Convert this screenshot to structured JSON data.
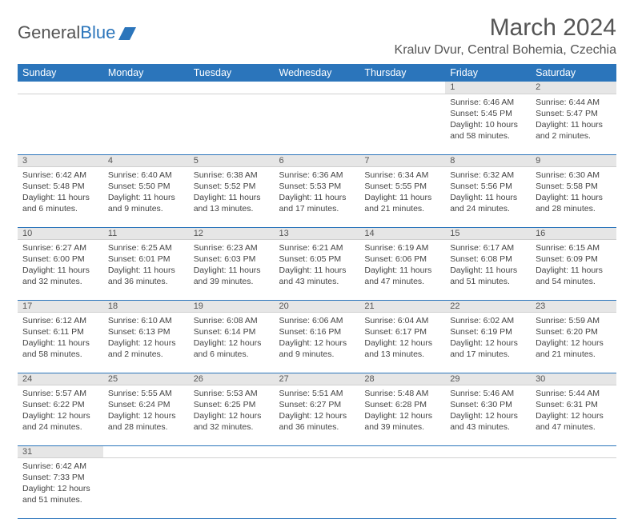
{
  "brand": {
    "part1": "General",
    "part2": "Blue"
  },
  "title": "March 2024",
  "location": "Kraluv Dvur, Central Bohemia, Czechia",
  "colors": {
    "header_bg": "#2b75bb",
    "header_text": "#ffffff",
    "daynum_bg": "#e6e6e6",
    "row_border": "#2b75bb",
    "text": "#444444"
  },
  "day_headers": [
    "Sunday",
    "Monday",
    "Tuesday",
    "Wednesday",
    "Thursday",
    "Friday",
    "Saturday"
  ],
  "weeks": [
    [
      null,
      null,
      null,
      null,
      null,
      {
        "n": "1",
        "sr": "Sunrise: 6:46 AM",
        "ss": "Sunset: 5:45 PM",
        "dl": "Daylight: 10 hours and 58 minutes."
      },
      {
        "n": "2",
        "sr": "Sunrise: 6:44 AM",
        "ss": "Sunset: 5:47 PM",
        "dl": "Daylight: 11 hours and 2 minutes."
      }
    ],
    [
      {
        "n": "3",
        "sr": "Sunrise: 6:42 AM",
        "ss": "Sunset: 5:48 PM",
        "dl": "Daylight: 11 hours and 6 minutes."
      },
      {
        "n": "4",
        "sr": "Sunrise: 6:40 AM",
        "ss": "Sunset: 5:50 PM",
        "dl": "Daylight: 11 hours and 9 minutes."
      },
      {
        "n": "5",
        "sr": "Sunrise: 6:38 AM",
        "ss": "Sunset: 5:52 PM",
        "dl": "Daylight: 11 hours and 13 minutes."
      },
      {
        "n": "6",
        "sr": "Sunrise: 6:36 AM",
        "ss": "Sunset: 5:53 PM",
        "dl": "Daylight: 11 hours and 17 minutes."
      },
      {
        "n": "7",
        "sr": "Sunrise: 6:34 AM",
        "ss": "Sunset: 5:55 PM",
        "dl": "Daylight: 11 hours and 21 minutes."
      },
      {
        "n": "8",
        "sr": "Sunrise: 6:32 AM",
        "ss": "Sunset: 5:56 PM",
        "dl": "Daylight: 11 hours and 24 minutes."
      },
      {
        "n": "9",
        "sr": "Sunrise: 6:30 AM",
        "ss": "Sunset: 5:58 PM",
        "dl": "Daylight: 11 hours and 28 minutes."
      }
    ],
    [
      {
        "n": "10",
        "sr": "Sunrise: 6:27 AM",
        "ss": "Sunset: 6:00 PM",
        "dl": "Daylight: 11 hours and 32 minutes."
      },
      {
        "n": "11",
        "sr": "Sunrise: 6:25 AM",
        "ss": "Sunset: 6:01 PM",
        "dl": "Daylight: 11 hours and 36 minutes."
      },
      {
        "n": "12",
        "sr": "Sunrise: 6:23 AM",
        "ss": "Sunset: 6:03 PM",
        "dl": "Daylight: 11 hours and 39 minutes."
      },
      {
        "n": "13",
        "sr": "Sunrise: 6:21 AM",
        "ss": "Sunset: 6:05 PM",
        "dl": "Daylight: 11 hours and 43 minutes."
      },
      {
        "n": "14",
        "sr": "Sunrise: 6:19 AM",
        "ss": "Sunset: 6:06 PM",
        "dl": "Daylight: 11 hours and 47 minutes."
      },
      {
        "n": "15",
        "sr": "Sunrise: 6:17 AM",
        "ss": "Sunset: 6:08 PM",
        "dl": "Daylight: 11 hours and 51 minutes."
      },
      {
        "n": "16",
        "sr": "Sunrise: 6:15 AM",
        "ss": "Sunset: 6:09 PM",
        "dl": "Daylight: 11 hours and 54 minutes."
      }
    ],
    [
      {
        "n": "17",
        "sr": "Sunrise: 6:12 AM",
        "ss": "Sunset: 6:11 PM",
        "dl": "Daylight: 11 hours and 58 minutes."
      },
      {
        "n": "18",
        "sr": "Sunrise: 6:10 AM",
        "ss": "Sunset: 6:13 PM",
        "dl": "Daylight: 12 hours and 2 minutes."
      },
      {
        "n": "19",
        "sr": "Sunrise: 6:08 AM",
        "ss": "Sunset: 6:14 PM",
        "dl": "Daylight: 12 hours and 6 minutes."
      },
      {
        "n": "20",
        "sr": "Sunrise: 6:06 AM",
        "ss": "Sunset: 6:16 PM",
        "dl": "Daylight: 12 hours and 9 minutes."
      },
      {
        "n": "21",
        "sr": "Sunrise: 6:04 AM",
        "ss": "Sunset: 6:17 PM",
        "dl": "Daylight: 12 hours and 13 minutes."
      },
      {
        "n": "22",
        "sr": "Sunrise: 6:02 AM",
        "ss": "Sunset: 6:19 PM",
        "dl": "Daylight: 12 hours and 17 minutes."
      },
      {
        "n": "23",
        "sr": "Sunrise: 5:59 AM",
        "ss": "Sunset: 6:20 PM",
        "dl": "Daylight: 12 hours and 21 minutes."
      }
    ],
    [
      {
        "n": "24",
        "sr": "Sunrise: 5:57 AM",
        "ss": "Sunset: 6:22 PM",
        "dl": "Daylight: 12 hours and 24 minutes."
      },
      {
        "n": "25",
        "sr": "Sunrise: 5:55 AM",
        "ss": "Sunset: 6:24 PM",
        "dl": "Daylight: 12 hours and 28 minutes."
      },
      {
        "n": "26",
        "sr": "Sunrise: 5:53 AM",
        "ss": "Sunset: 6:25 PM",
        "dl": "Daylight: 12 hours and 32 minutes."
      },
      {
        "n": "27",
        "sr": "Sunrise: 5:51 AM",
        "ss": "Sunset: 6:27 PM",
        "dl": "Daylight: 12 hours and 36 minutes."
      },
      {
        "n": "28",
        "sr": "Sunrise: 5:48 AM",
        "ss": "Sunset: 6:28 PM",
        "dl": "Daylight: 12 hours and 39 minutes."
      },
      {
        "n": "29",
        "sr": "Sunrise: 5:46 AM",
        "ss": "Sunset: 6:30 PM",
        "dl": "Daylight: 12 hours and 43 minutes."
      },
      {
        "n": "30",
        "sr": "Sunrise: 5:44 AM",
        "ss": "Sunset: 6:31 PM",
        "dl": "Daylight: 12 hours and 47 minutes."
      }
    ],
    [
      {
        "n": "31",
        "sr": "Sunrise: 6:42 AM",
        "ss": "Sunset: 7:33 PM",
        "dl": "Daylight: 12 hours and 51 minutes."
      },
      null,
      null,
      null,
      null,
      null,
      null
    ]
  ]
}
